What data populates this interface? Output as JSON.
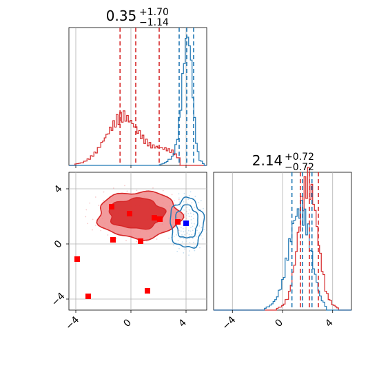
{
  "chart_data": {
    "type": "corner",
    "colors": {
      "model_a": "#d62728",
      "model_b": "#1f77b4",
      "truth_marker_a": "#ff0000",
      "truth_marker_b": "#0000ff"
    },
    "panels": [
      {
        "id": "param1-marginal",
        "type": "histogram",
        "title": {
          "main": "0.35",
          "plus": "+1.70",
          "minus": "−1.14"
        },
        "xlim": [
          -4.5,
          5.5
        ],
        "grid": true,
        "series": [
          {
            "name": "",
            "color": "#d62728",
            "quantiles": [
              -0.79,
              0.35,
              2.05
            ],
            "x": [
              -4.0,
              -3.5,
              -3.0,
              -2.5,
              -2.0,
              -1.5,
              -1.0,
              -0.5,
              0.0,
              0.5,
              1.0,
              1.5,
              2.0,
              2.5,
              3.0,
              3.5
            ],
            "density": [
              0.01,
              0.02,
              0.05,
              0.1,
              0.18,
              0.26,
              0.33,
              0.36,
              0.32,
              0.25,
              0.18,
              0.14,
              0.13,
              0.12,
              0.1,
              0.05
            ]
          },
          {
            "name": "",
            "color": "#1f77b4",
            "quantiles": [
              3.5,
              4.05,
              4.55
            ],
            "x": [
              2.0,
              2.5,
              3.0,
              3.3,
              3.6,
              3.8,
              4.0,
              4.2,
              4.4,
              4.6,
              4.8,
              5.0,
              5.3
            ],
            "density": [
              0.0,
              0.02,
              0.06,
              0.15,
              0.4,
              0.7,
              0.9,
              0.95,
              0.7,
              0.35,
              0.12,
              0.04,
              0.01
            ]
          }
        ]
      },
      {
        "id": "param2-marginal",
        "type": "histogram",
        "title": {
          "main": "2.14",
          "plus": "+0.72",
          "minus": "−0.72"
        },
        "xlim": [
          -5.5,
          5.5
        ],
        "xticks": [
          "−4",
          "0",
          "4"
        ],
        "grid": true,
        "series": [
          {
            "name": "",
            "color": "#d62728",
            "quantiles": [
              1.42,
              2.14,
              2.86
            ],
            "x": [
              -0.5,
              0.0,
              0.5,
              1.0,
              1.5,
              2.0,
              2.5,
              3.0,
              3.5,
              4.0,
              4.5
            ],
            "density": [
              0.01,
              0.03,
              0.1,
              0.35,
              0.75,
              0.95,
              0.8,
              0.4,
              0.12,
              0.04,
              0.01
            ]
          },
          {
            "name": "",
            "color": "#1f77b4",
            "quantiles": [
              0.75,
              1.6,
              2.35
            ],
            "x": [
              -1.5,
              -1.0,
              -0.5,
              0.0,
              0.5,
              1.0,
              1.5,
              2.0,
              2.5,
              3.0,
              3.5
            ],
            "density": [
              0.01,
              0.03,
              0.08,
              0.2,
              0.45,
              0.68,
              0.73,
              0.6,
              0.3,
              0.1,
              0.02
            ]
          }
        ]
      },
      {
        "id": "joint",
        "type": "contour",
        "xlim": [
          -4.5,
          5.5
        ],
        "ylim": [
          -4.8,
          5.2
        ],
        "xticks": [
          "−4",
          "0",
          "4"
        ],
        "yticks": [
          "−4",
          "0",
          "4"
        ],
        "grid": true,
        "points_a": [
          [
            -1.4,
            2.7
          ],
          [
            -0.1,
            2.2
          ],
          [
            1.7,
            1.9
          ],
          [
            2.1,
            1.8
          ],
          [
            3.4,
            1.6
          ],
          [
            -1.3,
            0.3
          ],
          [
            0.7,
            0.2
          ],
          [
            -3.9,
            -1.1
          ],
          [
            -3.1,
            -3.8
          ],
          [
            1.2,
            -3.4
          ]
        ],
        "points_b": [
          [
            4.0,
            1.5
          ]
        ],
        "contours_a": [
          {
            "cx": 0.4,
            "cy": 2.2,
            "rx": 2.0,
            "ry": 1.1
          },
          {
            "cx": 0.6,
            "cy": 2.1,
            "rx": 3.0,
            "ry": 1.7
          }
        ],
        "contours_b": [
          {
            "cx": 4.05,
            "cy": 1.6,
            "rx": 0.8,
            "ry": 1.2
          },
          {
            "cx": 4.05,
            "cy": 1.5,
            "rx": 1.2,
            "ry": 1.8
          }
        ]
      }
    ]
  }
}
